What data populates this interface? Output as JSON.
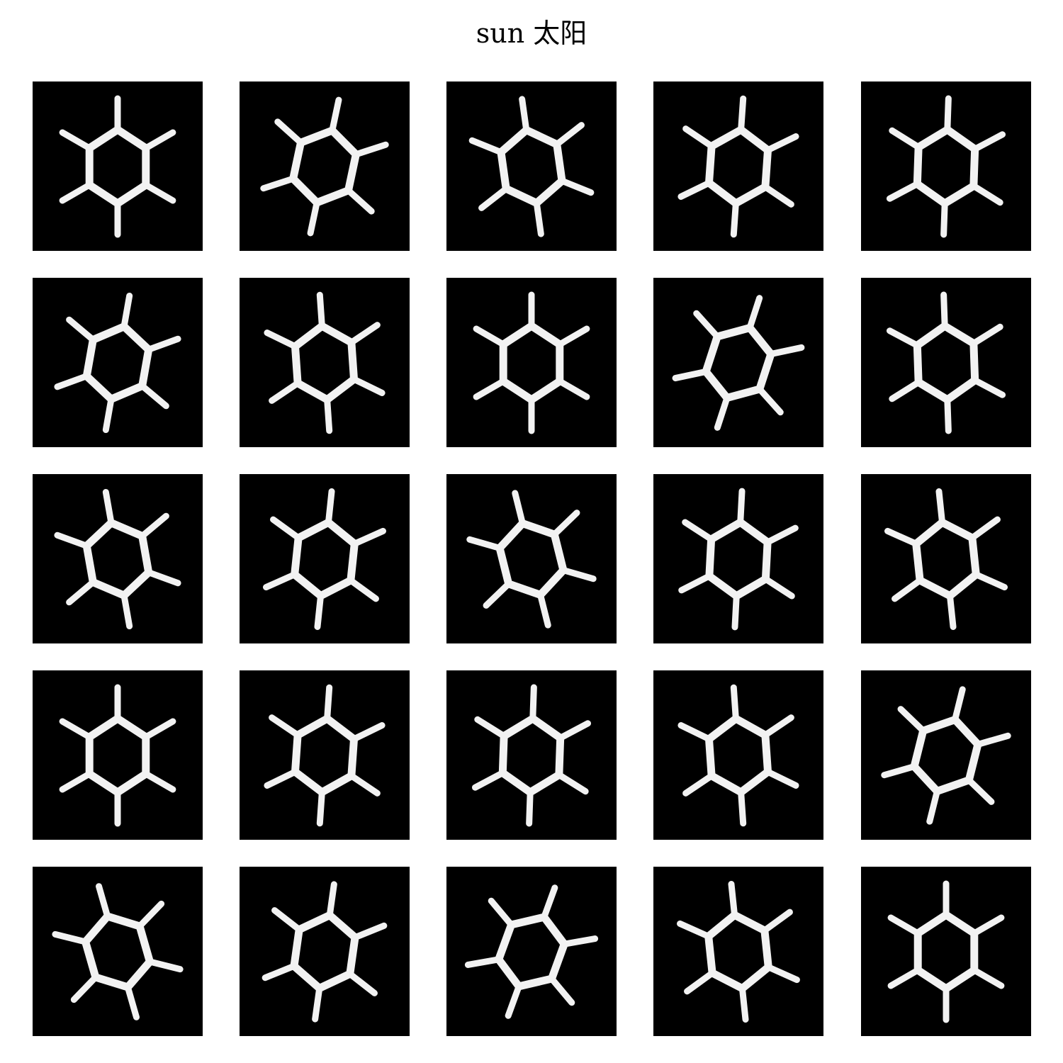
{
  "figure": {
    "title": "sun 太阳",
    "background_color": "#ffffff",
    "tile_background": "#000000",
    "stroke_color": "#f2f2f2"
  },
  "grid": {
    "rows": 5,
    "cols": 5,
    "tiles": [
      {
        "label": "sun-sketch",
        "rays": 6,
        "rotation": 0
      },
      {
        "label": "sun-sketch",
        "rays": 6,
        "rotation": 12
      },
      {
        "label": "sun-sketch",
        "rays": 6,
        "rotation": -8
      },
      {
        "label": "sun-sketch",
        "rays": 6,
        "rotation": 4
      },
      {
        "label": "sun-sketch",
        "rays": 6,
        "rotation": 2
      },
      {
        "label": "sun-sketch",
        "rays": 6,
        "rotation": 10
      },
      {
        "label": "sun-sketch",
        "rays": 6,
        "rotation": -4
      },
      {
        "label": "sun-sketch",
        "rays": 6,
        "rotation": 0
      },
      {
        "label": "sun-sketch",
        "rays": 6,
        "rotation": 18
      },
      {
        "label": "sun-sketch",
        "rays": 6,
        "rotation": -2
      },
      {
        "label": "sun-sketch",
        "rays": 6,
        "rotation": -10
      },
      {
        "label": "sun-sketch",
        "rays": 6,
        "rotation": 6
      },
      {
        "label": "sun-sketch",
        "rays": 6,
        "rotation": -14
      },
      {
        "label": "sun-sketch",
        "rays": 6,
        "rotation": 3
      },
      {
        "label": "sun-sketch",
        "rays": 6,
        "rotation": -6
      },
      {
        "label": "sun-sketch",
        "rays": 6,
        "rotation": 0
      },
      {
        "label": "sun-sketch",
        "rays": 6,
        "rotation": 4
      },
      {
        "label": "sun-sketch",
        "rays": 6,
        "rotation": 2
      },
      {
        "label": "sun-sketch",
        "rays": 6,
        "rotation": -4
      },
      {
        "label": "sun-sketch",
        "rays": 6,
        "rotation": 14
      },
      {
        "label": "sun-sketch",
        "rays": 6,
        "rotation": -16
      },
      {
        "label": "sun-sketch",
        "rays": 6,
        "rotation": 8
      },
      {
        "label": "sun-sketch",
        "rays": 6,
        "rotation": 20
      },
      {
        "label": "sun-sketch",
        "rays": 6,
        "rotation": -6
      },
      {
        "label": "sun-sketch",
        "rays": 6,
        "rotation": 0
      }
    ]
  }
}
